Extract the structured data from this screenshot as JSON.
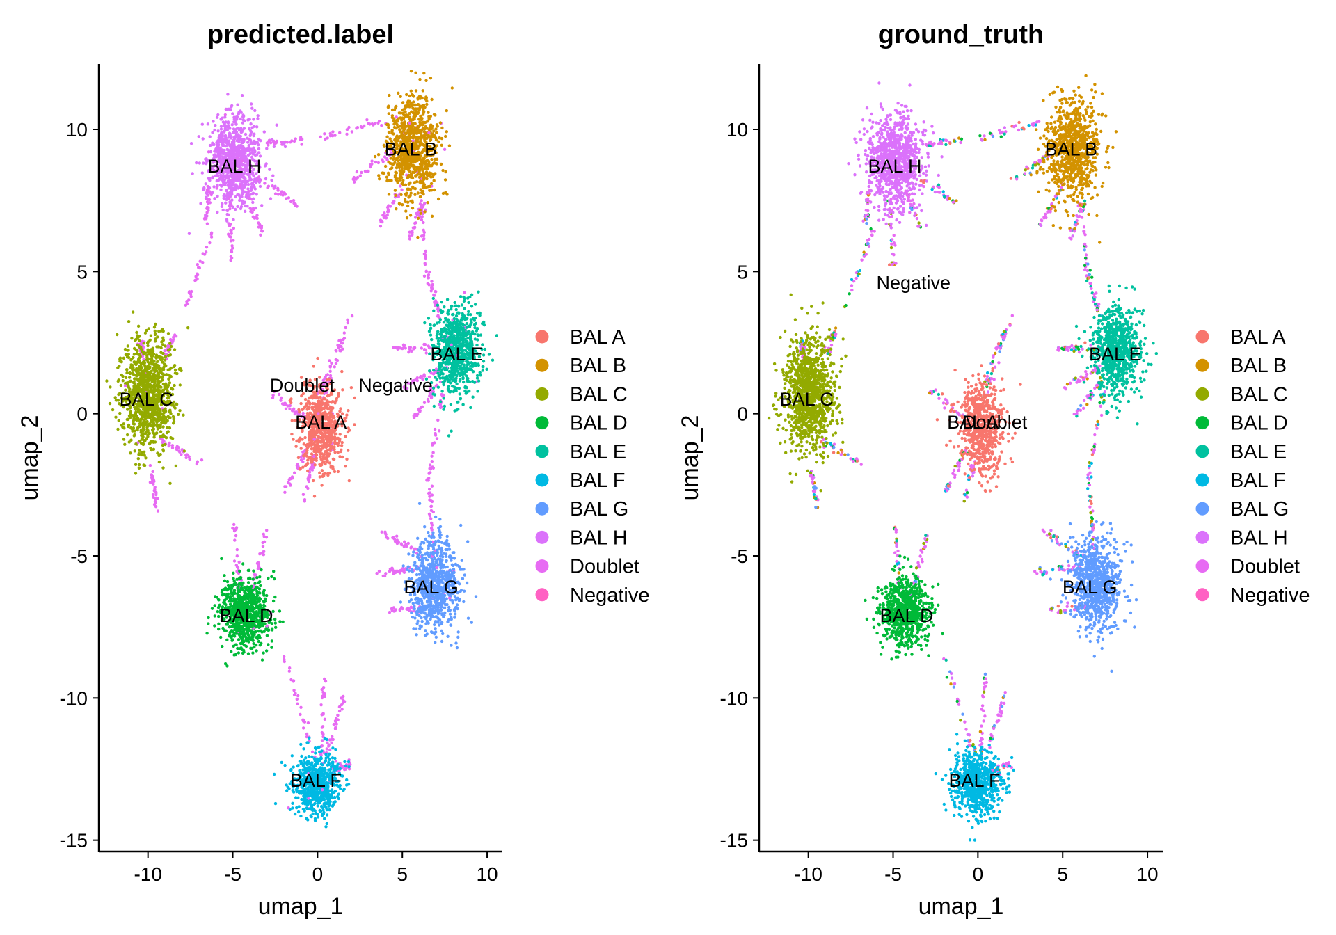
{
  "chart_data": [
    {
      "type": "scatter",
      "title": "predicted.label",
      "xlabel": "umap_1",
      "ylabel": "umap_2",
      "xlim": [
        -12.9,
        10.9
      ],
      "ylim": [
        -15.4,
        12.3
      ],
      "xticks": [
        -10,
        -5,
        0,
        5,
        10
      ],
      "yticks": [
        -15,
        -10,
        -5,
        0,
        5,
        10
      ],
      "xtick_labels": [
        "-10",
        "-5",
        "0",
        "5",
        "10"
      ],
      "ytick_labels": [
        "-15",
        "-10",
        "-5",
        "0",
        "5",
        "10"
      ],
      "legend_position": "right",
      "grid": false,
      "legend": [
        {
          "name": "BAL A",
          "color": "#F8766D"
        },
        {
          "name": "BAL B",
          "color": "#D39200"
        },
        {
          "name": "BAL C",
          "color": "#93AA00"
        },
        {
          "name": "BAL D",
          "color": "#00BA38"
        },
        {
          "name": "BAL E",
          "color": "#00C19F"
        },
        {
          "name": "BAL F",
          "color": "#00B9E3"
        },
        {
          "name": "BAL G",
          "color": "#619CFF"
        },
        {
          "name": "BAL H",
          "color": "#DB72FB"
        },
        {
          "name": "Doublet",
          "color": "#E76BF3"
        },
        {
          "name": "Negative",
          "color": "#FF61C3"
        }
      ],
      "cluster_labels": [
        {
          "text": "BAL H",
          "x": -4.9,
          "y": 8.7
        },
        {
          "text": "BAL B",
          "x": 5.5,
          "y": 9.3
        },
        {
          "text": "BAL E",
          "x": 8.2,
          "y": 2.1
        },
        {
          "text": "BAL C",
          "x": -10.1,
          "y": 0.5
        },
        {
          "text": "Doublet",
          "x": -0.9,
          "y": 1.0
        },
        {
          "text": "Negative",
          "x": 4.6,
          "y": 1.0
        },
        {
          "text": "BAL A",
          "x": 0.2,
          "y": -0.3
        },
        {
          "text": "BAL G",
          "x": 6.7,
          "y": -6.1
        },
        {
          "text": "BAL D",
          "x": -4.2,
          "y": -7.1
        },
        {
          "text": "BAL F",
          "x": -0.1,
          "y": -12.9
        }
      ],
      "clusters": [
        {
          "name": "BAL A",
          "color": "#F8766D",
          "cx": 0.2,
          "cy": -0.5,
          "sx": 0.65,
          "sy": 0.75,
          "n": 700
        },
        {
          "name": "BAL B",
          "color": "#D39200",
          "cx": 5.6,
          "cy": 9.3,
          "sx": 0.75,
          "sy": 0.9,
          "n": 900
        },
        {
          "name": "BAL C",
          "color": "#93AA00",
          "cx": -10.0,
          "cy": 0.7,
          "sx": 0.75,
          "sy": 0.95,
          "n": 1100
        },
        {
          "name": "BAL D",
          "color": "#00BA38",
          "cx": -4.3,
          "cy": -7.0,
          "sx": 0.75,
          "sy": 0.6,
          "n": 800
        },
        {
          "name": "BAL E",
          "color": "#00C19F",
          "cx": 8.2,
          "cy": 2.2,
          "sx": 0.7,
          "sy": 0.8,
          "n": 800
        },
        {
          "name": "BAL F",
          "color": "#00B9E3",
          "cx": -0.1,
          "cy": -13.0,
          "sx": 0.7,
          "sy": 0.55,
          "n": 700
        },
        {
          "name": "BAL G",
          "color": "#619CFF",
          "cx": 6.9,
          "cy": -6.0,
          "sx": 0.75,
          "sy": 0.8,
          "n": 800
        },
        {
          "name": "BAL H",
          "color": "#DB72FB",
          "cx": -4.9,
          "cy": 8.9,
          "sx": 0.8,
          "sy": 0.8,
          "n": 900
        }
      ],
      "streaks": [
        {
          "x1": -3.2,
          "y1": 9.5,
          "x2": -0.8,
          "y2": 9.6
        },
        {
          "x1": -3.6,
          "y1": 8.3,
          "x2": -1.2,
          "y2": 7.4
        },
        {
          "x1": -4.2,
          "y1": 7.8,
          "x2": -3.3,
          "y2": 6.4
        },
        {
          "x1": -5.2,
          "y1": 7.6,
          "x2": -5.0,
          "y2": 5.2
        },
        {
          "x1": -6.4,
          "y1": 7.9,
          "x2": -6.6,
          "y2": 6.7
        },
        {
          "x1": -6.2,
          "y1": 6.4,
          "x2": -7.8,
          "y2": 3.8
        },
        {
          "x1": 0.0,
          "y1": 9.7,
          "x2": 4.0,
          "y2": 10.3
        },
        {
          "x1": 4.4,
          "y1": 9.2,
          "x2": 2.0,
          "y2": 8.2
        },
        {
          "x1": 5.0,
          "y1": 8.0,
          "x2": 3.6,
          "y2": 6.6
        },
        {
          "x1": 6.3,
          "y1": 7.4,
          "x2": 5.4,
          "y2": 6.2
        },
        {
          "x1": 6.1,
          "y1": 7.6,
          "x2": 6.5,
          "y2": 4.5
        },
        {
          "x1": 6.5,
          "y1": 5.0,
          "x2": 7.2,
          "y2": 3.4
        },
        {
          "x1": 7.4,
          "y1": 0.9,
          "x2": 6.6,
          "y2": -2.2
        },
        {
          "x1": 6.5,
          "y1": -2.0,
          "x2": 6.9,
          "y2": -4.8
        },
        {
          "x1": 7.1,
          "y1": 2.3,
          "x2": 4.5,
          "y2": 2.3
        },
        {
          "x1": 7.2,
          "y1": 1.6,
          "x2": 5.0,
          "y2": 0.9
        },
        {
          "x1": 7.3,
          "y1": 1.2,
          "x2": 5.6,
          "y2": -0.2
        },
        {
          "x1": 5.9,
          "y1": -5.4,
          "x2": 3.5,
          "y2": -5.6
        },
        {
          "x1": 6.2,
          "y1": -5.0,
          "x2": 3.8,
          "y2": -4.1
        },
        {
          "x1": 6.4,
          "y1": -6.8,
          "x2": 4.2,
          "y2": -6.9
        },
        {
          "x1": 0.4,
          "y1": 0.6,
          "x2": 2.0,
          "y2": 3.5
        },
        {
          "x1": 0.0,
          "y1": 0.6,
          "x2": 1.6,
          "y2": 2.9
        },
        {
          "x1": -0.7,
          "y1": -0.2,
          "x2": -2.8,
          "y2": 0.8
        },
        {
          "x1": -0.2,
          "y1": -1.5,
          "x2": -0.8,
          "y2": -3.1
        },
        {
          "x1": -0.6,
          "y1": -1.2,
          "x2": -2.0,
          "y2": -2.8
        },
        {
          "x1": -9.3,
          "y1": -0.9,
          "x2": -6.7,
          "y2": -1.8
        },
        {
          "x1": -9.8,
          "y1": -2.0,
          "x2": -9.5,
          "y2": -3.3
        },
        {
          "x1": -3.9,
          "y1": -6.3,
          "x2": -3.0,
          "y2": -4.2
        },
        {
          "x1": -4.6,
          "y1": -6.3,
          "x2": -4.9,
          "y2": -3.9
        },
        {
          "x1": -0.1,
          "y1": -12.2,
          "x2": -2.0,
          "y2": -8.5
        },
        {
          "x1": 0.2,
          "y1": -12.2,
          "x2": 0.4,
          "y2": -9.0
        },
        {
          "x1": 0.5,
          "y1": -12.0,
          "x2": 1.6,
          "y2": -9.9
        },
        {
          "x1": 0.8,
          "y1": -12.6,
          "x2": 2.0,
          "y2": -12.3
        },
        {
          "x1": -10.3,
          "y1": 2.0,
          "x2": -10.4,
          "y2": 2.5
        },
        {
          "x1": -9.0,
          "y1": 2.0,
          "x2": -8.4,
          "y2": 2.9
        }
      ]
    },
    {
      "type": "scatter",
      "title": "ground_truth",
      "xlabel": "umap_1",
      "ylabel": "umap_2",
      "xlim": [
        -12.9,
        10.9
      ],
      "ylim": [
        -15.4,
        12.3
      ],
      "xticks": [
        -10,
        -5,
        0,
        5,
        10
      ],
      "yticks": [
        -15,
        -10,
        -5,
        0,
        5,
        10
      ],
      "xtick_labels": [
        "-10",
        "-5",
        "0",
        "5",
        "10"
      ],
      "ytick_labels": [
        "-15",
        "-10",
        "-5",
        "0",
        "5",
        "10"
      ],
      "legend_position": "right",
      "grid": false,
      "legend": [
        {
          "name": "BAL A",
          "color": "#F8766D"
        },
        {
          "name": "BAL B",
          "color": "#D39200"
        },
        {
          "name": "BAL C",
          "color": "#93AA00"
        },
        {
          "name": "BAL D",
          "color": "#00BA38"
        },
        {
          "name": "BAL E",
          "color": "#00C19F"
        },
        {
          "name": "BAL F",
          "color": "#00B9E3"
        },
        {
          "name": "BAL G",
          "color": "#619CFF"
        },
        {
          "name": "BAL H",
          "color": "#DB72FB"
        },
        {
          "name": "Doublet",
          "color": "#E76BF3"
        },
        {
          "name": "Negative",
          "color": "#FF61C3"
        }
      ],
      "cluster_labels": [
        {
          "text": "BAL H",
          "x": -4.9,
          "y": 8.7
        },
        {
          "text": "BAL B",
          "x": 5.5,
          "y": 9.3
        },
        {
          "text": "Negative",
          "x": -3.8,
          "y": 4.6
        },
        {
          "text": "BAL E",
          "x": 8.1,
          "y": 2.1
        },
        {
          "text": "BAL C",
          "x": -10.1,
          "y": 0.5
        },
        {
          "text": "BAL A",
          "x": -0.3,
          "y": -0.3
        },
        {
          "text": "Doublet",
          "x": 1.0,
          "y": -0.3
        },
        {
          "text": "BAL G",
          "x": 6.6,
          "y": -6.1
        },
        {
          "text": "BAL D",
          "x": -4.2,
          "y": -7.1
        },
        {
          "text": "BAL F",
          "x": -0.2,
          "y": -12.9
        }
      ],
      "clusters": [
        {
          "name": "BAL A",
          "color": "#F8766D",
          "cx": 0.2,
          "cy": -0.5,
          "sx": 0.65,
          "sy": 0.75,
          "n": 700
        },
        {
          "name": "BAL B",
          "color": "#D39200",
          "cx": 5.6,
          "cy": 9.3,
          "sx": 0.75,
          "sy": 0.9,
          "n": 900
        },
        {
          "name": "BAL C",
          "color": "#93AA00",
          "cx": -10.0,
          "cy": 0.7,
          "sx": 0.75,
          "sy": 0.95,
          "n": 1100
        },
        {
          "name": "BAL D",
          "color": "#00BA38",
          "cx": -4.3,
          "cy": -7.0,
          "sx": 0.75,
          "sy": 0.6,
          "n": 800
        },
        {
          "name": "BAL E",
          "color": "#00C19F",
          "cx": 8.2,
          "cy": 2.2,
          "sx": 0.7,
          "sy": 0.8,
          "n": 800
        },
        {
          "name": "BAL F",
          "color": "#00B9E3",
          "cx": -0.1,
          "cy": -13.0,
          "sx": 0.7,
          "sy": 0.55,
          "n": 700
        },
        {
          "name": "BAL G",
          "color": "#619CFF",
          "cx": 6.9,
          "cy": -6.0,
          "sx": 0.75,
          "sy": 0.8,
          "n": 800
        },
        {
          "name": "BAL H",
          "color": "#DB72FB",
          "cx": -4.9,
          "cy": 8.9,
          "sx": 0.8,
          "sy": 0.8,
          "n": 900
        }
      ],
      "streaks": [
        {
          "x1": -3.2,
          "y1": 9.5,
          "x2": -0.8,
          "y2": 9.6
        },
        {
          "x1": -3.6,
          "y1": 8.3,
          "x2": -1.2,
          "y2": 7.4
        },
        {
          "x1": -4.2,
          "y1": 7.8,
          "x2": -3.3,
          "y2": 6.4
        },
        {
          "x1": -5.2,
          "y1": 7.6,
          "x2": -5.0,
          "y2": 5.2
        },
        {
          "x1": -6.4,
          "y1": 7.9,
          "x2": -6.6,
          "y2": 6.7
        },
        {
          "x1": -6.2,
          "y1": 6.4,
          "x2": -7.8,
          "y2": 3.8
        },
        {
          "x1": 0.0,
          "y1": 9.7,
          "x2": 4.0,
          "y2": 10.3
        },
        {
          "x1": 4.4,
          "y1": 9.2,
          "x2": 2.0,
          "y2": 8.2
        },
        {
          "x1": 5.0,
          "y1": 8.0,
          "x2": 3.6,
          "y2": 6.6
        },
        {
          "x1": 6.3,
          "y1": 7.4,
          "x2": 5.4,
          "y2": 6.2
        },
        {
          "x1": 6.1,
          "y1": 7.6,
          "x2": 6.5,
          "y2": 4.5
        },
        {
          "x1": 6.5,
          "y1": 5.0,
          "x2": 7.2,
          "y2": 3.4
        },
        {
          "x1": 7.4,
          "y1": 0.9,
          "x2": 6.6,
          "y2": -2.2
        },
        {
          "x1": 6.5,
          "y1": -2.0,
          "x2": 6.9,
          "y2": -4.8
        },
        {
          "x1": 7.1,
          "y1": 2.3,
          "x2": 4.5,
          "y2": 2.3
        },
        {
          "x1": 7.2,
          "y1": 1.6,
          "x2": 5.0,
          "y2": 0.9
        },
        {
          "x1": 7.3,
          "y1": 1.2,
          "x2": 5.6,
          "y2": -0.2
        },
        {
          "x1": 5.9,
          "y1": -5.4,
          "x2": 3.5,
          "y2": -5.6
        },
        {
          "x1": 6.2,
          "y1": -5.0,
          "x2": 3.8,
          "y2": -4.1
        },
        {
          "x1": 6.4,
          "y1": -6.8,
          "x2": 4.2,
          "y2": -6.9
        },
        {
          "x1": 0.4,
          "y1": 0.6,
          "x2": 2.0,
          "y2": 3.5
        },
        {
          "x1": 0.0,
          "y1": 0.6,
          "x2": 1.6,
          "y2": 2.9
        },
        {
          "x1": -0.7,
          "y1": -0.2,
          "x2": -2.8,
          "y2": 0.8
        },
        {
          "x1": -0.2,
          "y1": -1.5,
          "x2": -0.8,
          "y2": -3.1
        },
        {
          "x1": -0.6,
          "y1": -1.2,
          "x2": -2.0,
          "y2": -2.8
        },
        {
          "x1": -9.3,
          "y1": -0.9,
          "x2": -6.7,
          "y2": -1.8
        },
        {
          "x1": -9.8,
          "y1": -2.0,
          "x2": -9.5,
          "y2": -3.3
        },
        {
          "x1": -3.9,
          "y1": -6.3,
          "x2": -3.0,
          "y2": -4.2
        },
        {
          "x1": -4.6,
          "y1": -6.3,
          "x2": -4.9,
          "y2": -3.9
        },
        {
          "x1": -0.1,
          "y1": -12.2,
          "x2": -2.0,
          "y2": -8.5
        },
        {
          "x1": 0.2,
          "y1": -12.2,
          "x2": 0.4,
          "y2": -9.0
        },
        {
          "x1": 0.5,
          "y1": -12.0,
          "x2": 1.6,
          "y2": -9.9
        },
        {
          "x1": 0.8,
          "y1": -12.6,
          "x2": 2.0,
          "y2": -12.3
        },
        {
          "x1": -10.3,
          "y1": 2.0,
          "x2": -10.4,
          "y2": 2.5
        },
        {
          "x1": -9.0,
          "y1": 2.0,
          "x2": -8.4,
          "y2": 2.9
        }
      ]
    }
  ]
}
